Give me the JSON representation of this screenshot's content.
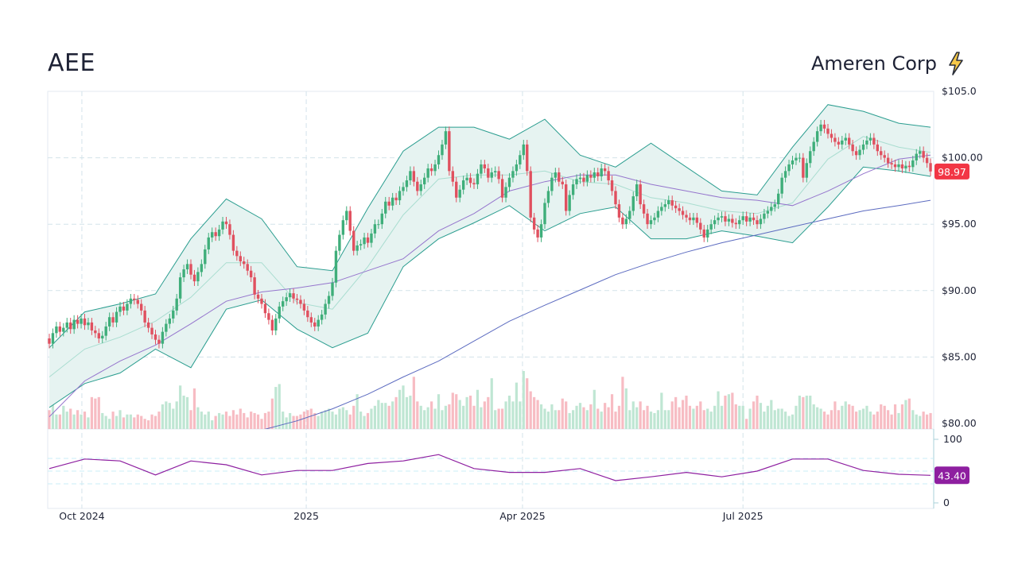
{
  "header": {
    "ticker": "AEE",
    "company": "Ameren Corp",
    "icon": "lightning-bolt-icon"
  },
  "colors": {
    "up": "#3fae7a",
    "down": "#e0505f",
    "vol_up": "#bfe6d3",
    "vol_down": "#f7bcc3",
    "band_line": "#2a9d8f",
    "band_fill": "#e6f3f1",
    "sma20": "#a9ddd0",
    "sma50": "#9575cd",
    "sma200": "#5c6bc0",
    "rsi": "#8e1fa0",
    "last_price_bg": "#f23645"
  },
  "chart_data": {
    "type": "candlestick",
    "price_axis": {
      "ylim": [
        80,
        105
      ],
      "ticks": [
        "$105.0",
        "$100.00",
        "$95.00",
        "$90.00",
        "$85.00",
        "$80.00"
      ],
      "tick_values": [
        105,
        100,
        95,
        90,
        85,
        80
      ]
    },
    "x_ticks": [
      {
        "label": "Oct 2024",
        "index": 9.2
      },
      {
        "label": "2025",
        "index": 72.6
      },
      {
        "label": "Apr 2025",
        "index": 133.7
      },
      {
        "label": "Jul 2025",
        "index": 196
      }
    ],
    "last_price": "98.97",
    "closes": [
      86.0,
      86.8,
      87.3,
      86.9,
      87.2,
      87.6,
      87.1,
      87.8,
      87.5,
      87.9,
      87.4,
      87.6,
      87.0,
      86.8,
      86.4,
      86.6,
      87.3,
      88.0,
      87.6,
      88.4,
      88.8,
      88.5,
      89.0,
      89.4,
      89.3,
      89.0,
      88.5,
      87.6,
      87.2,
      86.7,
      86.3,
      86.0,
      86.9,
      87.5,
      87.9,
      88.5,
      89.4,
      91.0,
      91.6,
      92.0,
      91.2,
      90.7,
      91.4,
      92.0,
      93.1,
      94.0,
      94.4,
      94.1,
      94.6,
      95.2,
      95.0,
      94.2,
      93.0,
      92.6,
      92.2,
      92.0,
      91.5,
      91.0,
      89.7,
      89.4,
      89.0,
      88.3,
      87.8,
      87.0,
      87.9,
      88.8,
      89.2,
      89.5,
      89.8,
      89.4,
      89.3,
      89.0,
      88.5,
      88.0,
      87.6,
      87.3,
      87.8,
      88.2,
      89.0,
      89.6,
      90.6,
      93.0,
      94.2,
      95.3,
      96.0,
      94.5,
      93.0,
      93.4,
      93.5,
      94.0,
      93.6,
      94.3,
      95.0,
      95.0,
      95.8,
      96.7,
      96.4,
      97.0,
      96.8,
      97.5,
      97.8,
      98.3,
      99.0,
      98.2,
      97.5,
      98.0,
      98.5,
      99.2,
      99.0,
      99.5,
      100.2,
      101.0,
      102.0,
      99.0,
      98.2,
      97.0,
      97.6,
      98.3,
      98.5,
      98.1,
      98.0,
      98.8,
      99.5,
      99.2,
      98.5,
      98.9,
      99.0,
      98.4,
      97.0,
      97.8,
      98.5,
      99.0,
      99.5,
      100.2,
      101.0,
      99.0,
      95.5,
      94.6,
      94.0,
      95.0,
      96.6,
      97.5,
      98.5,
      98.9,
      98.2,
      98.0,
      96.0,
      97.2,
      98.0,
      98.4,
      98.5,
      98.2,
      98.7,
      98.5,
      98.9,
      98.6,
      99.2,
      99.0,
      98.3,
      97.5,
      96.5,
      95.5,
      95.0,
      95.4,
      96.0,
      97.1,
      98.0,
      96.5,
      95.8,
      95.0,
      95.3,
      95.5,
      96.0,
      96.3,
      96.5,
      96.8,
      96.4,
      96.2,
      96.0,
      95.7,
      95.5,
      95.3,
      95.5,
      95.1,
      94.6,
      94.0,
      94.6,
      95.0,
      95.3,
      95.5,
      95.6,
      95.2,
      95.4,
      95.1,
      95.0,
      95.3,
      95.6,
      95.2,
      95.5,
      95.3,
      95.0,
      95.4,
      95.8,
      96.0,
      96.3,
      96.5,
      97.3,
      98.5,
      99.0,
      99.5,
      99.8,
      100.0,
      100.0,
      98.5,
      99.6,
      100.5,
      101.2,
      102.0,
      102.5,
      102.2,
      101.8,
      101.5,
      101.2,
      101.0,
      101.3,
      101.5,
      101.0,
      100.5,
      100.2,
      100.6,
      101.0,
      101.3,
      101.5,
      101.0,
      100.5,
      100.2,
      100.0,
      99.6,
      99.5,
      99.3,
      99.5,
      99.2,
      99.4,
      99.3,
      99.8,
      100.3,
      100.5,
      100.0,
      99.6,
      98.97
    ],
    "volume": [
      1.3,
      3.8,
      1.0,
      1.0,
      1.6,
      1.2,
      1.4,
      1.0,
      1.3,
      1.0,
      1.2,
      0.8,
      2.2,
      2.1,
      2.2,
      1.1,
      0.9,
      0.7,
      1.2,
      0.9,
      1.3,
      0.8,
      1.0,
      1.0,
      0.8,
      1.0,
      0.9,
      0.7,
      0.6,
      1.0,
      0.9,
      1.2,
      1.7,
      1.9,
      1.8,
      1.4,
      1.9,
      3.0,
      2.3,
      2.2,
      1.3,
      2.8,
      1.5,
      1.2,
      1.0,
      1.2,
      0.6,
      0.9,
      1.1,
      1.0,
      1.2,
      0.9,
      1.3,
      1.0,
      1.4,
      1.1,
      0.8,
      1.2,
      1.1,
      1.0,
      0.7,
      1.1,
      1.2,
      2.1,
      2.9,
      3.1,
      1.2,
      0.8,
      1.1,
      0.9,
      0.9,
      1.0,
      1.2,
      1.3,
      1.4,
      1.1,
      0.9,
      1.2,
      1.3,
      1.4,
      1.2,
      1.0,
      1.4,
      1.5,
      1.3,
      1.0,
      1.6,
      2.4,
      1.2,
      0.9,
      1.1,
      1.4,
      1.6,
      2.0,
      1.8,
      1.8,
      1.6,
      1.9,
      2.2,
      2.7,
      3.0,
      2.2,
      2.3,
      3.6,
      1.9,
      1.6,
      1.3,
      1.5,
      1.9,
      1.4,
      2.4,
      1.3,
      1.6,
      1.7,
      2.5,
      2.4,
      2.0,
      1.6,
      2.2,
      2.3,
      1.6,
      2.7,
      1.5,
      1.9,
      2.2,
      3.5,
      1.3,
      1.4,
      1.4,
      1.9,
      2.3,
      1.9,
      3.2,
      1.9,
      4.0,
      3.5,
      2.6,
      2.2,
      2.0,
      1.7,
      1.4,
      1.2,
      1.7,
      1.3,
      1.3,
      2.1,
      1.9,
      1.1,
      1.3,
      1.6,
      1.8,
      1.5,
      1.3,
      1.7,
      2.7,
      1.4,
      1.2,
      1.8,
      1.5,
      2.4,
      1.2,
      1.6,
      3.6,
      2.8,
      1.3,
      1.9,
      1.5,
      1.9,
      1.3,
      1.6,
      1.2,
      1.1,
      1.3,
      2.5,
      1.3,
      1.3,
      1.9,
      2.2,
      1.5,
      2.0,
      2.3,
      1.6,
      1.4,
      1.6,
      1.9,
      1.3,
      1.4,
      1.2,
      1.6,
      2.6,
      1.6,
      2.3,
      2.4,
      2.5,
      1.7,
      1.6,
      1.6,
      0.7,
      1.4,
      1.9,
      2.3,
      1.8,
      1.2,
      1.6,
      2.0,
      1.3,
      1.4,
      1.4,
      1.2,
      0.9,
      1.0,
      1.6,
      2.3,
      2.2,
      2.3,
      2.3,
      1.7,
      1.5,
      1.4,
      1.2,
      1.0,
      1.3,
      1.9,
      1.3,
      1.6,
      1.9,
      1.7,
      1.6,
      1.2,
      1.3,
      1.4,
      1.6,
      1.2,
      1.0,
      1.2,
      1.7,
      1.6,
      1.3,
      1.0,
      1.7,
      1.1,
      1.7,
      2.0,
      2.1,
      1.3,
      1.0,
      0.9,
      1.2,
      1.0,
      1.1
    ],
    "indicator_sample_index": [
      0,
      10,
      20,
      30,
      40,
      50,
      60,
      70,
      80,
      90,
      100,
      110,
      120,
      130,
      140,
      150,
      160,
      170,
      180,
      190,
      200,
      210,
      220,
      230,
      240,
      249
    ],
    "bollinger_upper": [
      85.7,
      88.4,
      89.0,
      89.75,
      93.9,
      96.9,
      95.4,
      91.8,
      91.5,
      96.2,
      100.5,
      102.3,
      102.3,
      101.4,
      102.9,
      100.2,
      99.3,
      101.1,
      99.3,
      97.5,
      97.2,
      100.8,
      104.0,
      103.5,
      102.6,
      102.3
    ],
    "bollinger_lower": [
      81.2,
      83.0,
      83.8,
      85.6,
      84.2,
      88.6,
      89.3,
      87.1,
      85.7,
      86.8,
      91.8,
      93.9,
      95.1,
      96.4,
      94.5,
      95.8,
      96.3,
      93.9,
      93.9,
      94.5,
      94.1,
      93.6,
      96.3,
      99.3,
      99.0,
      98.6
    ],
    "sma20": [
      83.5,
      85.6,
      86.5,
      87.7,
      89.5,
      92.1,
      92.1,
      89.1,
      88.6,
      91.8,
      95.7,
      98.4,
      98.7,
      98.7,
      99.0,
      98.2,
      98.0,
      97.0,
      96.6,
      96.0,
      95.8,
      96.6,
      99.9,
      101.6,
      100.8,
      100.4
    ],
    "sma50": [
      80.5,
      83.2,
      84.7,
      85.9,
      87.5,
      89.2,
      89.9,
      90.2,
      90.6,
      91.5,
      92.4,
      94.5,
      95.8,
      97.5,
      98.2,
      98.7,
      98.7,
      98.0,
      97.5,
      97.0,
      96.8,
      96.4,
      97.5,
      98.8,
      99.9,
      100.2
    ],
    "sma200": [
      null,
      null,
      null,
      null,
      null,
      null,
      79.5,
      80.2,
      81.1,
      82.2,
      83.5,
      84.7,
      86.2,
      87.7,
      88.9,
      90.05,
      91.2,
      92.1,
      92.9,
      93.6,
      94.2,
      94.8,
      95.4,
      96.0,
      96.4,
      96.8
    ],
    "rsi": {
      "ylim": [
        0,
        100
      ],
      "ticks": [
        "100",
        "0"
      ],
      "guides": [
        30,
        50,
        70
      ],
      "last": "43.40",
      "values": [
        54,
        69,
        66,
        44,
        66,
        60,
        44,
        51,
        51,
        62,
        66,
        76,
        54,
        48,
        48,
        54,
        35,
        41,
        48,
        41,
        50,
        69,
        69,
        51,
        45,
        43.4
      ]
    }
  }
}
